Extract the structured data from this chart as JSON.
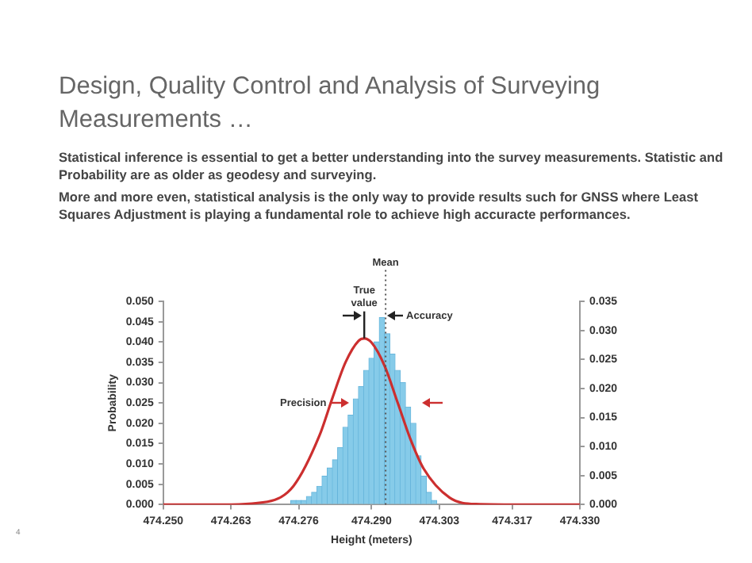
{
  "chart_data": {
    "type": "histogram",
    "title": "Design, Quality Control and Analysis of Surveying Measurements …",
    "annotations": [
      "Statistical inference is essential to get a better understanding into the survey measurements. Statistic and Probability are as older as geodesy and surveying.",
      "More and more even, statistical analysis is the only way to provide results such for GNSS where Least Squares Adjustment is playing a fundamental role to achieve high accuracte performances.",
      {
        "text": "True value",
        "x": 474.2886,
        "y": 0.0409
      },
      {
        "text": "Accuracy",
        "x": 474.2927,
        "y": 0.0465
      },
      {
        "text": "Precision",
        "x": 474.2859,
        "y": 0.025
      },
      "4"
    ],
    "xlabel": "Height (meters)",
    "ylabel": "Probability",
    "bins": [
      474.2745,
      474.2755,
      474.2765,
      474.2775,
      474.2785,
      474.2795,
      474.2805,
      474.2815,
      474.2825,
      474.2835,
      474.2845,
      474.2855,
      474.2865,
      474.2875,
      474.2885,
      474.2895,
      474.2905,
      474.2915,
      474.2925,
      474.2935,
      474.2945,
      474.2955,
      474.2965,
      474.2975,
      474.2985,
      474.2995,
      474.3005,
      474.3015,
      474.3025
    ],
    "values": [
      0.001,
      0.001,
      0.001,
      0.002,
      0.003,
      0.0045,
      0.007,
      0.009,
      0.011,
      0.014,
      0.019,
      0.022,
      0.026,
      0.029,
      0.033,
      0.036,
      0.04,
      0.046,
      0.042,
      0.037,
      0.033,
      0.03,
      0.024,
      0.02,
      0.012,
      0.007,
      0.003,
      0.001
    ],
    "color": "#86cbe9",
    "series": [
      {
        "type": "line",
        "axis": "y2",
        "color": "#cc2f2f",
        "x": [
          474.25,
          474.26,
          474.27,
          474.275,
          474.28,
          474.2825,
          474.285,
          474.2875,
          474.2886,
          474.29,
          474.2925,
          474.295,
          474.2975,
          474.3,
          474.305,
          474.31,
          474.32,
          474.33
        ],
        "values": [
          0,
          0,
          0.0005,
          0.0032,
          0.0119,
          0.0184,
          0.0245,
          0.0282,
          0.0286,
          0.0279,
          0.0239,
          0.0176,
          0.0112,
          0.0062,
          0.0012,
          0.0001,
          0,
          0
        ]
      }
    ],
    "ref_lines": [
      {
        "axis": "x",
        "value": 474.2927,
        "label": "Mean",
        "line_style": "dotted",
        "color": "#555555"
      }
    ],
    "xlim": [
      474.25,
      474.33
    ],
    "xticks": [
      {
        "value": 474.25,
        "label": "474.250"
      },
      474.263,
      474.276,
      {
        "value": 474.29,
        "label": "474.290"
      },
      474.303,
      474.317,
      {
        "value": 474.33,
        "label": "474.330"
      }
    ],
    "ylim": [
      0,
      0.05
    ],
    "yticks": [
      {
        "value": 0,
        "label": "0.000"
      },
      {
        "value": 0.005,
        "label": "0.005"
      },
      {
        "value": 0.01,
        "label": "0.010"
      },
      {
        "value": 0.015,
        "label": "0.015"
      },
      {
        "value": 0.02,
        "label": "0.020"
      },
      {
        "value": 0.025,
        "label": "0.025"
      },
      {
        "value": 0.03,
        "label": "0.030"
      },
      {
        "value": 0.035,
        "label": "0.035"
      },
      {
        "value": 0.04,
        "label": "0.040"
      },
      {
        "value": 0.045,
        "label": "0.045"
      },
      {
        "value": 0.05,
        "label": "0.050"
      }
    ],
    "y2lim": [
      0,
      0.035
    ],
    "y2ticks": [
      {
        "value": 0,
        "label": "0.000"
      },
      {
        "value": 0.005,
        "label": "0.005"
      },
      {
        "value": 0.01,
        "label": "0.010"
      },
      {
        "value": 0.015,
        "label": "0.015"
      },
      {
        "value": 0.02,
        "label": "0.020"
      },
      {
        "value": 0.025,
        "label": "0.025"
      },
      {
        "value": 0.03,
        "label": "0.030"
      },
      {
        "value": 0.035,
        "label": "0.035"
      }
    ],
    "grid": false,
    "legend": false
  }
}
